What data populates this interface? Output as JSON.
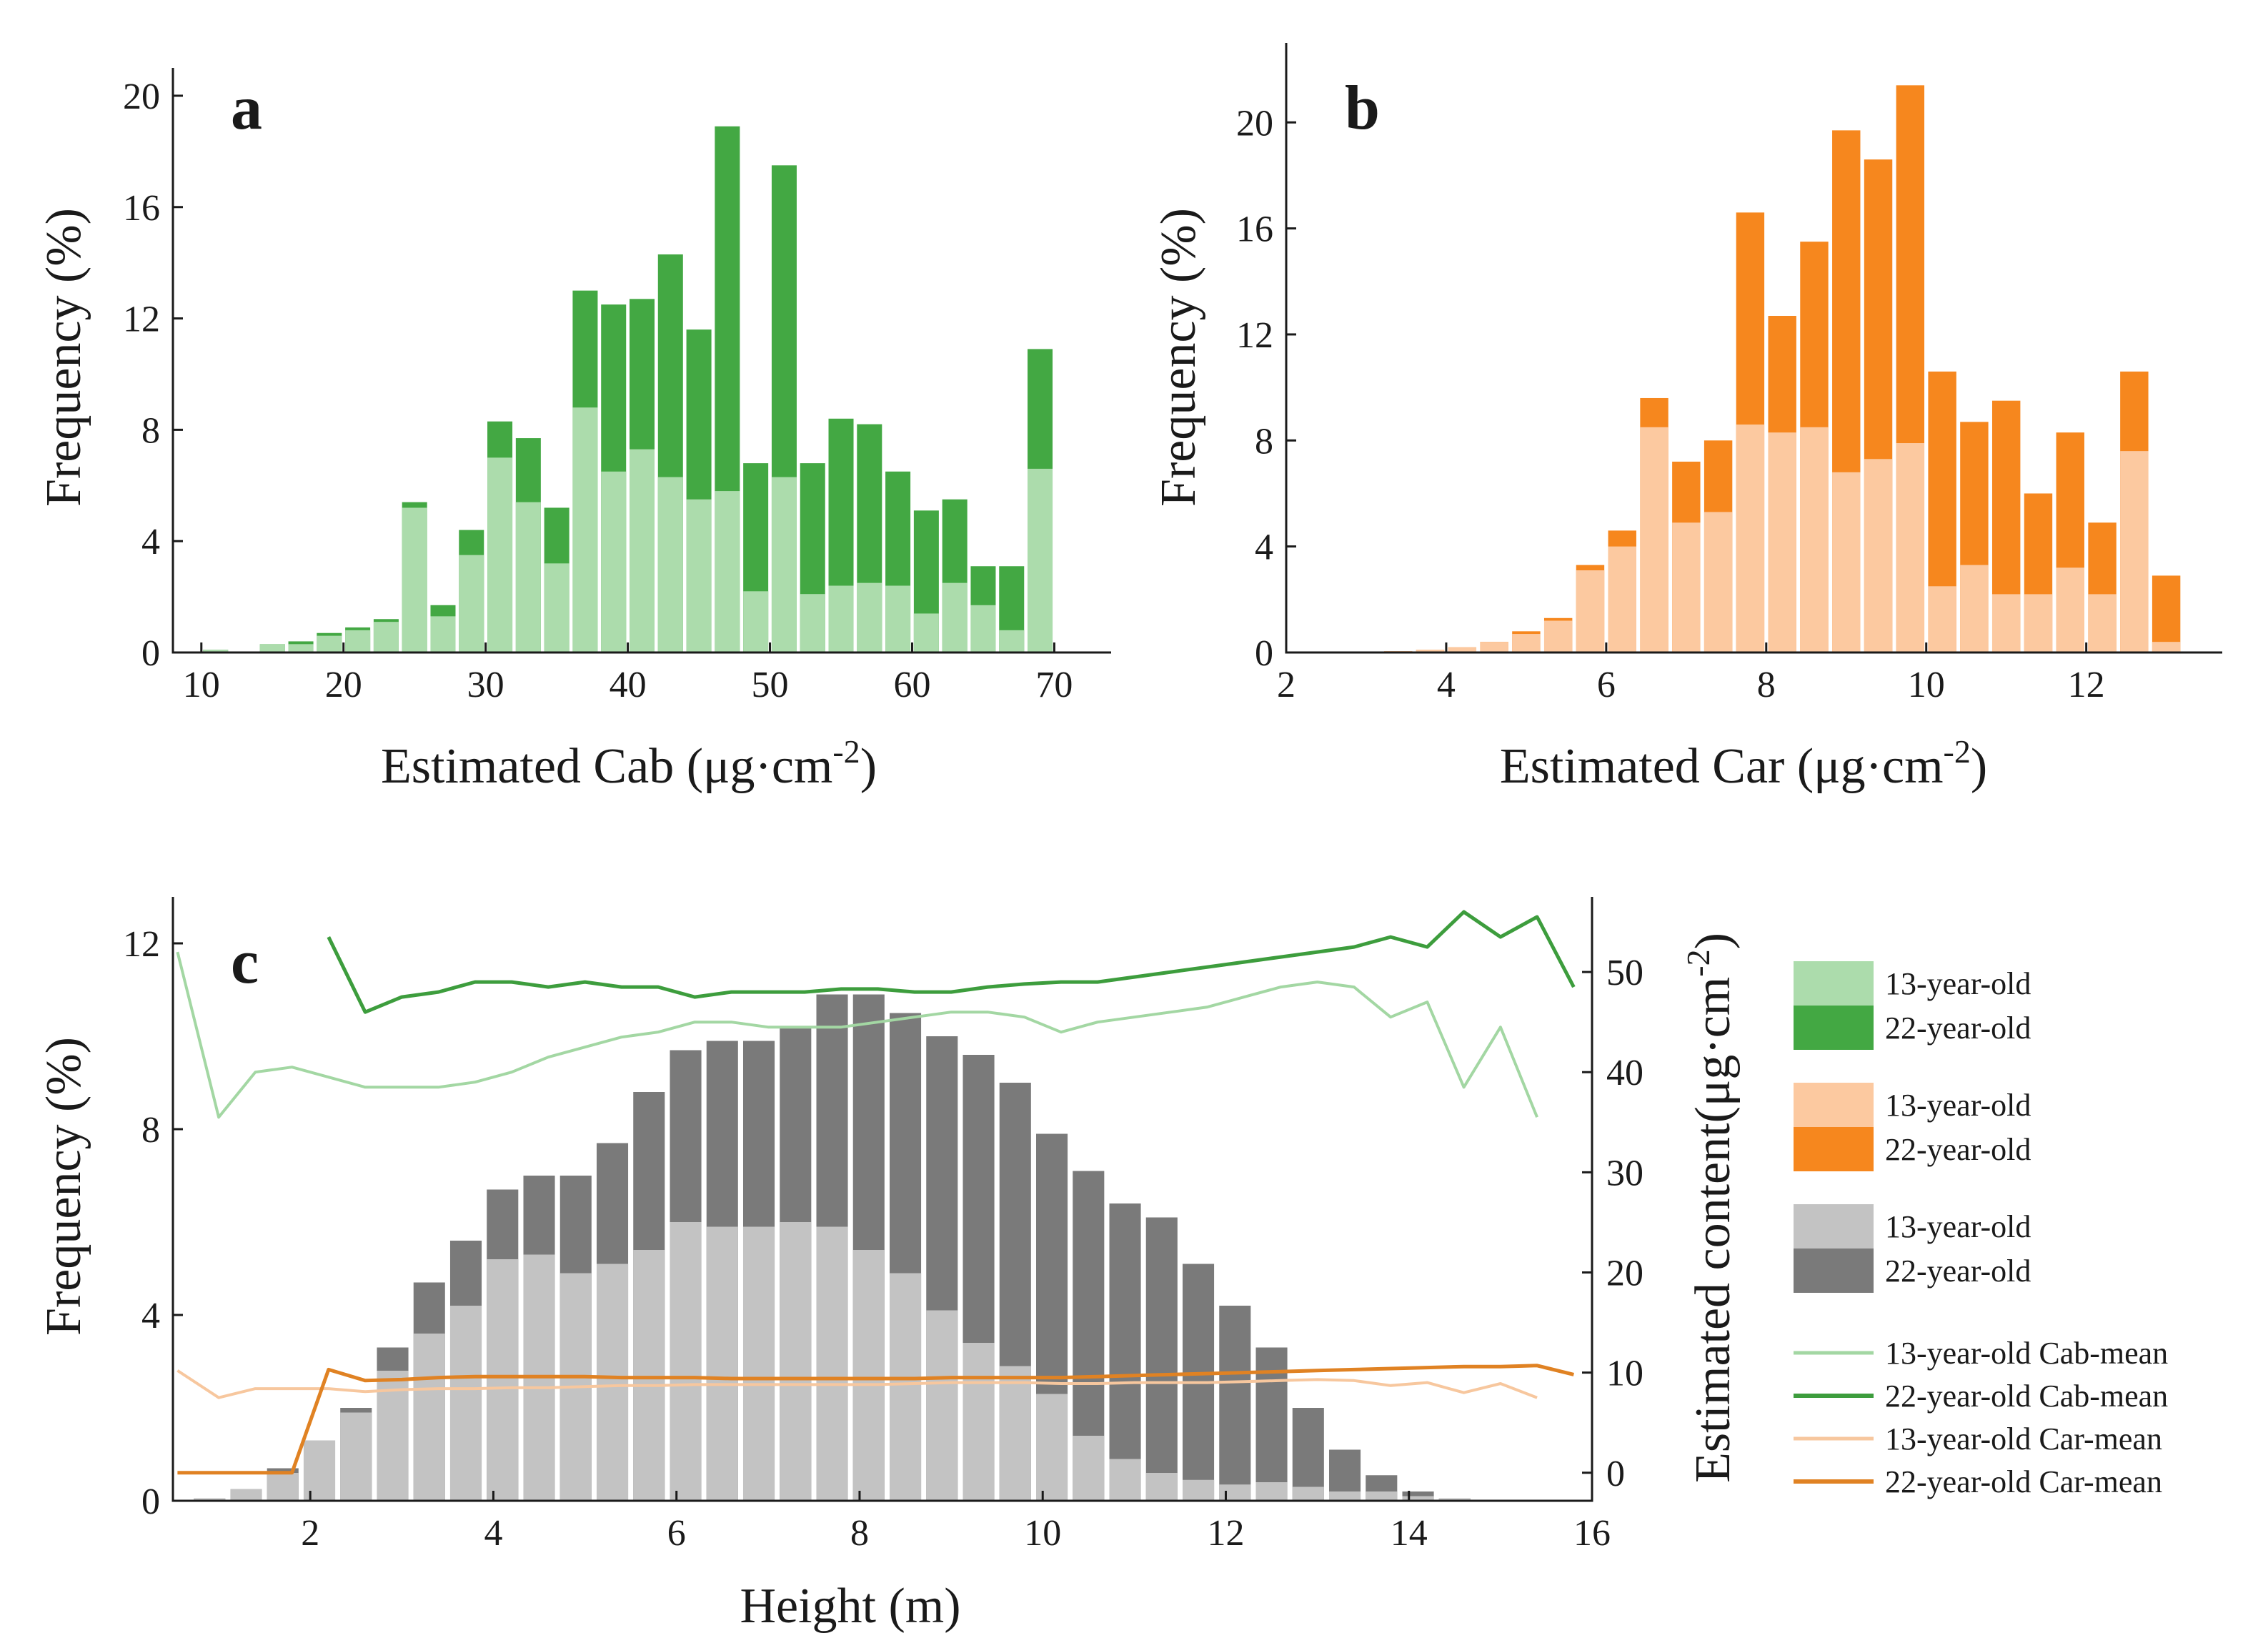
{
  "colors": {
    "cab13": "#acdcac",
    "cab22": "#43a843",
    "car13": "#fcc9a0",
    "car22": "#f6871e",
    "h13": "#c3c3c3",
    "h22": "#7a7a7a",
    "cabLine13": "#a3d7a3",
    "cabLine22": "#3d9d3d",
    "carLine13": "#f7c79e",
    "carLine22": "#e08223"
  },
  "chart_data": [
    {
      "type": "bar",
      "panel": "a",
      "title": "",
      "xlabel": "Estimated Cab (μg·cm",
      "xlabel_sup": "-2",
      "xlabel_end": ")",
      "ylabel": "Frequency (%)",
      "xlim": [
        8,
        74
      ],
      "ylim": [
        0,
        21
      ],
      "xticks": [
        "10",
        "20",
        "30",
        "40",
        "50",
        "60",
        "70"
      ],
      "xtick_values": [
        10,
        20,
        30,
        40,
        50,
        60,
        70
      ],
      "yticks": [
        "0",
        "4",
        "8",
        "12",
        "16",
        "20"
      ],
      "ytick_values": [
        0,
        4,
        8,
        12,
        16,
        20
      ],
      "bin_width": 2,
      "bin_centers": [
        11,
        13,
        15,
        17,
        19,
        21,
        23,
        25,
        27,
        29,
        31,
        33,
        35,
        37,
        39,
        41,
        43,
        45,
        47,
        49,
        51,
        53,
        55,
        57,
        59,
        61,
        63,
        65,
        67,
        69
      ],
      "series": [
        {
          "name": "13-year-old",
          "values": [
            0.1,
            0,
            0.3,
            0.3,
            0.6,
            0.8,
            1.1,
            5.2,
            1.3,
            3.5,
            7.0,
            5.4,
            3.2,
            8.8,
            6.5,
            7.3,
            6.3,
            5.5,
            5.8,
            2.2,
            6.3,
            2.1,
            2.4,
            2.5,
            2.4,
            1.4,
            2.5,
            1.7,
            0.8,
            6.6
          ]
        },
        {
          "name": "22-year-old",
          "values": [
            0.1,
            0,
            0.3,
            0.4,
            0.7,
            0.9,
            1.2,
            5.4,
            1.7,
            4.4,
            8.3,
            7.7,
            5.2,
            13.0,
            12.5,
            12.7,
            14.3,
            11.6,
            18.9,
            6.8,
            17.5,
            6.8,
            8.4,
            8.2,
            6.5,
            5.1,
            5.5,
            3.1,
            3.1,
            10.9
          ]
        }
      ]
    },
    {
      "type": "bar",
      "panel": "b",
      "title": "",
      "xlabel": "Estimated Car (μg·cm",
      "xlabel_sup": "-2",
      "xlabel_end": ")",
      "ylabel": "Frequency (%)",
      "xlim": [
        2,
        13.7
      ],
      "ylim": [
        0,
        23
      ],
      "xticks": [
        "2",
        "4",
        "6",
        "8",
        "10",
        "12"
      ],
      "xtick_values": [
        2,
        4,
        6,
        8,
        10,
        12
      ],
      "yticks": [
        "0",
        "4",
        "8",
        "12",
        "16",
        "20"
      ],
      "ytick_values": [
        0,
        4,
        8,
        12,
        16,
        20
      ],
      "bin_width": 0.4,
      "bin_centers": [
        3.4,
        3.8,
        4.2,
        4.6,
        5.0,
        5.4,
        5.8,
        6.2,
        6.6,
        7.0,
        7.4,
        7.8,
        8.2,
        8.6,
        9.0,
        9.4,
        9.8,
        10.2,
        10.6,
        11.0,
        11.4,
        11.8,
        12.2,
        12.6,
        13.0
      ],
      "series": [
        {
          "name": "13-year-old",
          "values": [
            0.05,
            0.1,
            0.2,
            0.4,
            0.7,
            1.2,
            3.1,
            4.0,
            8.5,
            4.9,
            5.3,
            8.6,
            8.3,
            8.5,
            6.8,
            7.3,
            7.9,
            2.5,
            3.3,
            2.2,
            2.2,
            3.2,
            2.2,
            7.6,
            0.4
          ]
        },
        {
          "name": "22-year-old",
          "values": [
            0.05,
            0.1,
            0.2,
            0.4,
            0.8,
            1.3,
            3.3,
            4.6,
            9.6,
            7.2,
            8.0,
            16.6,
            12.7,
            15.5,
            19.7,
            18.6,
            21.4,
            10.6,
            8.7,
            9.5,
            6.0,
            8.3,
            4.9,
            10.6,
            2.9
          ]
        }
      ]
    },
    {
      "type": "bar+line",
      "panel": "c",
      "title": "",
      "xlabel": "Height (m)",
      "ylabel": "Frequency (%)",
      "y2label": "Estimated content(μg·cm",
      "y2label_sup": "-2",
      "y2label_end": ")",
      "xlim": [
        0.5,
        16
      ],
      "ylim": [
        0,
        13
      ],
      "y2lim": [
        -2.8,
        57.5
      ],
      "xticks": [
        "2",
        "4",
        "6",
        "8",
        "10",
        "12",
        "14",
        "16"
      ],
      "xtick_values": [
        2,
        4,
        6,
        8,
        10,
        12,
        14,
        16
      ],
      "yticks": [
        "0",
        "4",
        "8",
        "12"
      ],
      "ytick_values": [
        0,
        4,
        8,
        12
      ],
      "y2ticks": [
        "0",
        "10",
        "20",
        "30",
        "40",
        "50"
      ],
      "y2tick_values": [
        0,
        10,
        20,
        30,
        40,
        50
      ],
      "bin_width": 0.4,
      "bin_centers": [
        0.9,
        1.3,
        1.7,
        2.1,
        2.5,
        2.9,
        3.3,
        3.7,
        4.1,
        4.5,
        4.9,
        5.3,
        5.7,
        6.1,
        6.5,
        6.9,
        7.3,
        7.7,
        8.1,
        8.5,
        8.9,
        9.3,
        9.7,
        10.1,
        10.5,
        10.9,
        11.3,
        11.7,
        12.1,
        12.5,
        12.9,
        13.3,
        13.7,
        14.1,
        14.5,
        14.9,
        15.3
      ],
      "series": [
        {
          "name": "13-year-old",
          "values": [
            0.05,
            0.25,
            0.6,
            1.3,
            1.9,
            2.8,
            3.6,
            4.2,
            5.2,
            5.3,
            4.9,
            5.1,
            5.4,
            6.0,
            5.9,
            5.9,
            6.0,
            5.9,
            5.4,
            4.9,
            4.1,
            3.4,
            2.9,
            2.3,
            1.4,
            0.9,
            0.6,
            0.45,
            0.35,
            0.4,
            0.3,
            0.2,
            0.2,
            0.1,
            0.05,
            0.02,
            0.01
          ]
        },
        {
          "name": "22-year-old",
          "values": [
            0.05,
            0.25,
            0.7,
            1.3,
            2.0,
            3.3,
            4.7,
            5.6,
            6.7,
            7.0,
            7.0,
            7.7,
            8.8,
            9.7,
            9.9,
            9.9,
            10.2,
            10.9,
            10.9,
            10.5,
            10.0,
            9.6,
            9.0,
            7.9,
            7.1,
            6.4,
            6.1,
            5.1,
            4.2,
            3.3,
            2.0,
            1.1,
            0.55,
            0.2,
            0.05,
            0.02,
            0.01
          ]
        }
      ],
      "lines": [
        {
          "name": "13-year-old Cab-mean",
          "x": [
            0.55,
            1.0,
            1.4,
            1.8,
            2.2,
            2.6,
            3.0,
            3.4,
            3.8,
            4.2,
            4.6,
            5.0,
            5.4,
            5.8,
            6.2,
            6.6,
            7.0,
            7.4,
            7.8,
            8.2,
            8.6,
            9.0,
            9.4,
            9.8,
            10.2,
            10.6,
            11.0,
            11.4,
            11.8,
            12.2,
            12.6,
            13.0,
            13.4,
            13.8,
            14.2,
            14.6,
            15.0,
            15.4
          ],
          "values": [
            52,
            35.5,
            40,
            40.5,
            39.5,
            38.5,
            38.5,
            38.5,
            39,
            40,
            41.5,
            42.5,
            43.5,
            44,
            45,
            45,
            44.5,
            44.5,
            44.5,
            45,
            45.5,
            46,
            46,
            45.5,
            44,
            45,
            45.5,
            46,
            46.5,
            47.5,
            48.5,
            49,
            48.5,
            45.5,
            47,
            38.5,
            44.5,
            35.5
          ]
        },
        {
          "name": "22-year-old Cab-mean",
          "x": [
            2.2,
            2.6,
            3.0,
            3.4,
            3.8,
            4.2,
            4.6,
            5.0,
            5.4,
            5.8,
            6.2,
            6.6,
            7.0,
            7.4,
            7.8,
            8.2,
            8.6,
            9.0,
            9.4,
            9.8,
            10.2,
            10.6,
            11.0,
            11.4,
            11.8,
            12.2,
            12.6,
            13.0,
            13.4,
            13.8,
            14.2,
            14.6,
            15.0,
            15.4,
            15.8
          ],
          "values": [
            53.5,
            46,
            47.5,
            48,
            49,
            49,
            48.5,
            49,
            48.5,
            48.5,
            47.5,
            48,
            48,
            48,
            48.3,
            48.3,
            48,
            48,
            48.5,
            48.8,
            49,
            49,
            49.5,
            50,
            50.5,
            51,
            51.5,
            52,
            52.5,
            53.5,
            52.5,
            56,
            53.5,
            55.5,
            48.5
          ]
        },
        {
          "name": "13-year-old Car-mean",
          "x": [
            0.55,
            1.0,
            1.4,
            1.8,
            2.2,
            2.6,
            3.0,
            3.4,
            3.8,
            4.2,
            4.6,
            5.0,
            5.4,
            5.8,
            6.2,
            6.6,
            7.0,
            7.4,
            7.8,
            8.2,
            8.6,
            9.0,
            9.4,
            9.8,
            10.2,
            10.6,
            11.0,
            11.4,
            11.8,
            12.2,
            12.6,
            13.0,
            13.4,
            13.8,
            14.2,
            14.6,
            15.0,
            15.4
          ],
          "values": [
            10.2,
            7.5,
            8.4,
            8.4,
            8.4,
            8.1,
            8.3,
            8.4,
            8.4,
            8.5,
            8.5,
            8.6,
            8.7,
            8.7,
            8.8,
            8.8,
            8.8,
            8.8,
            8.8,
            8.8,
            8.9,
            9.0,
            9.0,
            9.0,
            8.9,
            8.9,
            9.0,
            9.0,
            9.0,
            9.1,
            9.2,
            9.3,
            9.2,
            8.7,
            9.0,
            8.0,
            8.9,
            7.5
          ]
        },
        {
          "name": "22-year-old Car-mean",
          "x": [
            0.55,
            1.0,
            1.4,
            1.8,
            2.2,
            2.6,
            3.0,
            3.4,
            3.8,
            4.2,
            4.6,
            5.0,
            5.4,
            5.8,
            6.2,
            6.6,
            7.0,
            7.4,
            7.8,
            8.2,
            8.6,
            9.0,
            9.4,
            9.8,
            10.2,
            10.6,
            11.0,
            11.4,
            11.8,
            12.2,
            12.6,
            13.0,
            13.4,
            13.8,
            14.2,
            14.6,
            15.0,
            15.4,
            15.8
          ],
          "values": [
            0,
            0,
            0,
            0,
            10.3,
            9.2,
            9.3,
            9.5,
            9.6,
            9.6,
            9.6,
            9.6,
            9.5,
            9.5,
            9.5,
            9.4,
            9.4,
            9.4,
            9.4,
            9.4,
            9.4,
            9.5,
            9.5,
            9.5,
            9.5,
            9.6,
            9.7,
            9.8,
            9.9,
            10.0,
            10.1,
            10.2,
            10.3,
            10.4,
            10.5,
            10.6,
            10.6,
            10.7,
            9.8
          ]
        }
      ],
      "legend": {
        "groups": [
          {
            "label13": "13-year-old",
            "label22": "22-year-old",
            "kind": "Cab"
          },
          {
            "label13": "13-year-old",
            "label22": "22-year-old",
            "kind": "Car"
          },
          {
            "label13": "13-year-old",
            "label22": "22-year-old",
            "kind": "Height"
          }
        ],
        "lines": [
          "13-year-old Cab-mean",
          "22-year-old Cab-mean",
          "13-year-old Car-mean",
          "22-year-old Car-mean"
        ]
      }
    }
  ]
}
